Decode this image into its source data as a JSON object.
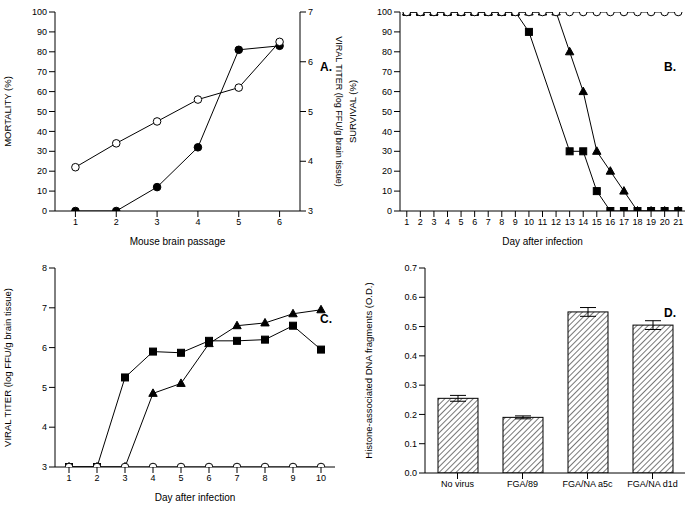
{
  "chart_data": [
    {
      "type": "line",
      "title": "A.",
      "xlabel": "Mouse brain passage",
      "ylabel": "MORTALITY (%)",
      "y2label": "VIRAL TITER (log FFU/g brain tissue)",
      "x": [
        1,
        2,
        3,
        4,
        5,
        6
      ],
      "xlim": [
        0.5,
        6.5
      ],
      "xticks": [
        1,
        2,
        3,
        4,
        5,
        6
      ],
      "ylim": [
        0,
        100
      ],
      "yticks": [
        0,
        10,
        20,
        30,
        40,
        50,
        60,
        70,
        80,
        90,
        100
      ],
      "y2lim": [
        3,
        7
      ],
      "y2ticks": [
        3,
        4,
        5,
        6,
        7
      ],
      "series": [
        {
          "color": "#000000",
          "marker": "circle",
          "values": [
            0,
            0,
            12,
            32,
            81,
            83
          ]
        },
        {
          "color": "#000000",
          "marker": "open_circle",
          "axis": "y2",
          "values": [
            3.88,
            4.36,
            4.8,
            5.24,
            5.48,
            6.4
          ]
        }
      ]
    },
    {
      "type": "line",
      "title": "B.",
      "xlabel": "Day after infection",
      "ylabel": "SURVIVAL (%)",
      "xlim": [
        0.5,
        21.5
      ],
      "xticks": [
        1,
        2,
        3,
        4,
        5,
        6,
        7,
        8,
        9,
        10,
        11,
        12,
        13,
        14,
        15,
        16,
        17,
        18,
        19,
        20,
        21
      ],
      "ylim": [
        0,
        100
      ],
      "yticks": [
        0,
        10,
        20,
        30,
        40,
        50,
        60,
        70,
        80,
        90,
        100
      ],
      "series": [
        {
          "color": "#000000",
          "marker": "square",
          "x": [
            1,
            2,
            3,
            4,
            5,
            6,
            7,
            8,
            9,
            10,
            13,
            14,
            15,
            16,
            17,
            18,
            19,
            20,
            21
          ],
          "values": [
            100,
            100,
            100,
            100,
            100,
            100,
            100,
            100,
            100,
            90,
            30,
            30,
            10,
            0,
            0,
            0,
            0,
            0,
            0
          ]
        },
        {
          "color": "#000000",
          "marker": "triangle",
          "x": [
            1,
            2,
            3,
            4,
            5,
            6,
            7,
            8,
            9,
            10,
            11,
            12,
            13,
            14,
            15,
            16,
            17,
            18,
            19,
            20,
            21
          ],
          "values": [
            100,
            100,
            100,
            100,
            100,
            100,
            100,
            100,
            100,
            100,
            100,
            100,
            80,
            60,
            30,
            20,
            10,
            0,
            0,
            0,
            0
          ]
        },
        {
          "color": "#000000",
          "marker": "open_circle",
          "x": [
            1,
            2,
            3,
            4,
            5,
            6,
            7,
            8,
            9,
            10,
            11,
            12,
            13,
            14,
            15,
            16,
            17,
            18,
            19,
            20,
            21
          ],
          "values": [
            100,
            100,
            100,
            100,
            100,
            100,
            100,
            100,
            100,
            100,
            100,
            100,
            100,
            100,
            100,
            100,
            100,
            100,
            100,
            100,
            100
          ]
        }
      ]
    },
    {
      "type": "line",
      "title": "C.",
      "xlabel": "Day after infection",
      "ylabel": "VIRAL TITER (log FFU/g brain tissue)",
      "x": [
        1,
        2,
        3,
        4,
        5,
        6,
        7,
        8,
        9,
        10
      ],
      "xlim": [
        0.5,
        10.5
      ],
      "xticks": [
        1,
        2,
        3,
        4,
        5,
        6,
        7,
        8,
        9,
        10
      ],
      "ylim": [
        3,
        8
      ],
      "yticks": [
        3,
        4,
        5,
        6,
        7,
        8
      ],
      "series": [
        {
          "color": "#000000",
          "marker": "square",
          "values": [
            3,
            3,
            5.25,
            5.9,
            5.87,
            6.17,
            6.17,
            6.2,
            6.55,
            5.95
          ]
        },
        {
          "color": "#000000",
          "marker": "triangle",
          "values": [
            3,
            3,
            3,
            4.85,
            5.1,
            6.1,
            6.55,
            6.62,
            6.85,
            6.95
          ]
        },
        {
          "color": "#000000",
          "marker": "open_circle",
          "values": [
            3,
            3,
            3,
            3,
            3,
            3,
            3,
            3,
            3,
            3
          ]
        }
      ]
    },
    {
      "type": "bar",
      "title": "D.",
      "ylabel": "Histone-associated DNA fragments (O.D.)",
      "categories": [
        "No virus",
        "FGA/89",
        "FGA/NA a5c",
        "FGA/NA d1d"
      ],
      "values": [
        0.255,
        0.19,
        0.55,
        0.505
      ],
      "errors": [
        0.01,
        0.005,
        0.015,
        0.015
      ],
      "color": "#555555",
      "ylim": [
        0,
        0.7
      ],
      "yticks": [
        {
          "value": 0,
          "label": "0.0"
        },
        0.1,
        0.2,
        0.3,
        0.4,
        0.5,
        0.6,
        0.7
      ]
    }
  ]
}
